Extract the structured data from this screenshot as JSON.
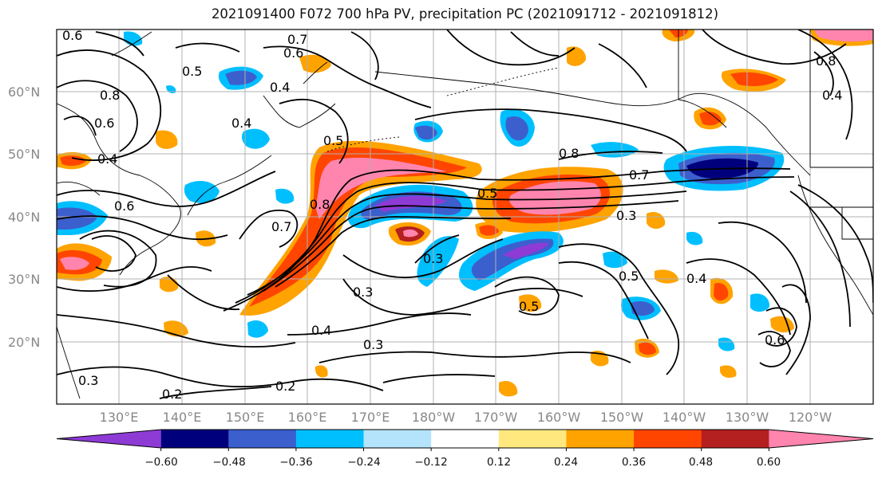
{
  "title": "2021091400 F072 700 hPa PV, precipitation PC (2021091712 - 2021091812)",
  "lat_labels": [
    "60°N",
    "50°N",
    "40°N",
    "30°N",
    "20°N"
  ],
  "lon_labels": [
    "130°E",
    "140°E",
    "150°E",
    "160°E",
    "170°E",
    "180°W",
    "170°W",
    "160°W",
    "150°W",
    "140°W",
    "130°W",
    "120°W"
  ],
  "contour_labels": [
    "0.6",
    "0.7",
    "0.6",
    "0.5",
    "0.4",
    "0.4",
    "0.8",
    "0.6",
    "0.4",
    "0.5",
    "0.8",
    "0.7",
    "0.5",
    "0.3",
    "0.6",
    "0.7",
    "0.8",
    "0.3",
    "0.4",
    "0.3",
    "0.5",
    "0.3",
    "0.4",
    "0.5",
    "0.2",
    "0.2",
    "0.3",
    "0.6",
    "0.8",
    "0.4"
  ],
  "colorbar": {
    "tick_labels": [
      "−0.60",
      "−0.48",
      "−0.36",
      "−0.24",
      "−0.12",
      "0.12",
      "0.24",
      "0.36",
      "0.48",
      "0.60"
    ],
    "colors": [
      "#8e3bd6",
      "#00007d",
      "#3c5fce",
      "#00bfff",
      "#b4e4fc",
      "#ffffff",
      "#ffe97f",
      "#ffa300",
      "#ff4500",
      "#b42020",
      "#ff85ae"
    ]
  },
  "map_colors": {
    "contour": "#000000",
    "grid": "#b0b0b0",
    "coast": "#000000"
  }
}
